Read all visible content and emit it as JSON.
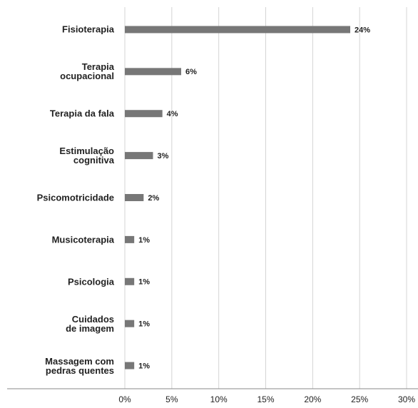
{
  "chart_data": {
    "type": "barh",
    "categories": [
      "Fisioterapia",
      "Terapia\nocupacional",
      "Terapia da fala",
      "Estimulação\ncognitiva",
      "Psicomotricidade",
      "Musicoterapia",
      "Psicologia",
      "Cuidados\nde imagem",
      "Massagem com\npedras quentes"
    ],
    "values": [
      24,
      6,
      4,
      3,
      2,
      1,
      1,
      1,
      1
    ],
    "value_labels": [
      "24%",
      "6%",
      "4%",
      "3%",
      "2%",
      "1%",
      "1%",
      "1%",
      "1%"
    ],
    "color": "#777777",
    "xlim": [
      0,
      30
    ],
    "xticks": [
      {
        "value": 0,
        "label": "0%"
      },
      {
        "value": 5,
        "label": "5%"
      },
      {
        "value": 10,
        "label": "10%"
      },
      {
        "value": 15,
        "label": "15%"
      },
      {
        "value": 20,
        "label": "20%"
      },
      {
        "value": 25,
        "label": "25%"
      },
      {
        "value": 30,
        "label": "30%"
      }
    ],
    "grid": true
  }
}
